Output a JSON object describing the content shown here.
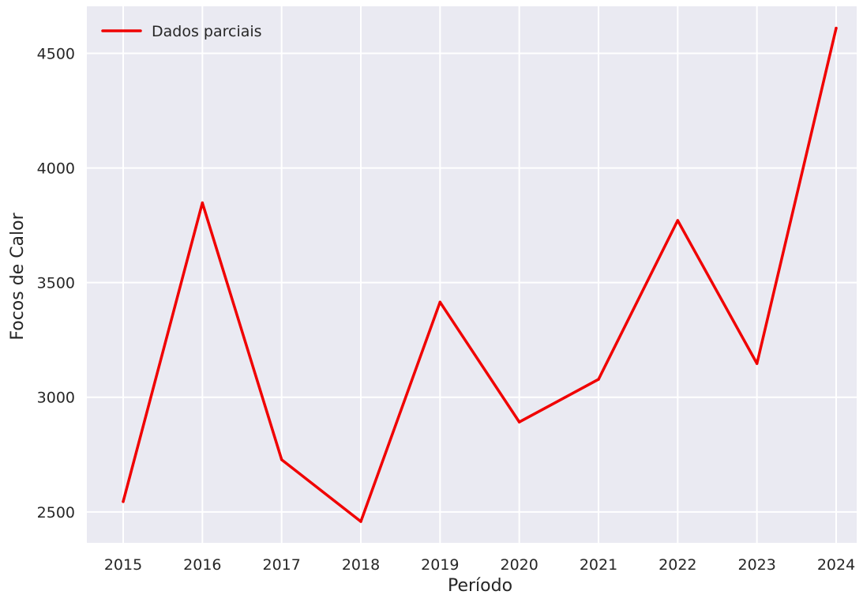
{
  "chart_data": {
    "type": "line",
    "title": "",
    "xlabel": "Período",
    "ylabel": "Focos de Calor",
    "x": [
      "2015",
      "2016",
      "2017",
      "2018",
      "2019",
      "2020",
      "2021",
      "2022",
      "2023",
      "2024"
    ],
    "series": [
      {
        "name": "Dados parciais",
        "color": "#f00000",
        "values": [
          2545,
          3848,
          2728,
          2458,
          3415,
          2892,
          3078,
          3771,
          3147,
          4610
        ]
      }
    ],
    "ylim": [
      2365,
      4705
    ],
    "yticks": [
      2500,
      3000,
      3500,
      4000,
      4500
    ],
    "grid": true,
    "legend_position": "top-left",
    "style": {
      "plot_background": "#eaeaf2",
      "grid_color": "#ffffff"
    }
  }
}
